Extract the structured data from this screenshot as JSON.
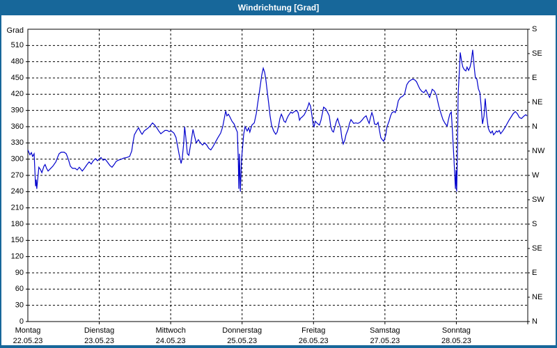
{
  "window": {
    "title": "Windrichtung [Grad]"
  },
  "colors": {
    "titlebar": "#17679a",
    "frame_border": "#17679a",
    "line": "#0000cc",
    "grid": "#000000",
    "background": "#ffffff"
  },
  "chart_data": {
    "type": "line",
    "title": "Windrichtung [Grad]",
    "ylabel": "Grad",
    "unit_label": "Grad",
    "ylim": [
      0,
      540
    ],
    "y_tick_step": 30,
    "y_left_ticks": [
      0,
      30,
      60,
      90,
      120,
      150,
      180,
      210,
      240,
      270,
      300,
      330,
      360,
      390,
      420,
      450,
      480,
      510
    ],
    "y_right_ticks": [
      {
        "deg": 0,
        "label": "N"
      },
      {
        "deg": 45,
        "label": "NE"
      },
      {
        "deg": 90,
        "label": "E"
      },
      {
        "deg": 135,
        "label": "SE"
      },
      {
        "deg": 180,
        "label": "S"
      },
      {
        "deg": 225,
        "label": "SW"
      },
      {
        "deg": 270,
        "label": "W"
      },
      {
        "deg": 315,
        "label": "NW"
      },
      {
        "deg": 360,
        "label": "N"
      },
      {
        "deg": 405,
        "label": "NE"
      },
      {
        "deg": 450,
        "label": "E"
      },
      {
        "deg": 495,
        "label": "SE"
      },
      {
        "deg": 540,
        "label": "S"
      }
    ],
    "xlim_hours": [
      0,
      168
    ],
    "x_days": [
      {
        "name": "Montag",
        "date": "22.05.23"
      },
      {
        "name": "Dienstag",
        "date": "23.05.23"
      },
      {
        "name": "Mittwoch",
        "date": "24.05.23"
      },
      {
        "name": "Donnerstag",
        "date": "25.05.23"
      },
      {
        "name": "Freitag",
        "date": "26.05.23"
      },
      {
        "name": "Samstag",
        "date": "27.05.23"
      },
      {
        "name": "Sonntag",
        "date": "28.05.23"
      }
    ],
    "grid": true,
    "legend": "none",
    "series": [
      {
        "name": "Windrichtung",
        "color": "#0000cc",
        "points": [
          [
            0,
            317
          ],
          [
            0.7,
            308
          ],
          [
            1.2,
            312
          ],
          [
            1.6,
            305
          ],
          [
            2.1,
            310
          ],
          [
            2.6,
            250
          ],
          [
            2.8,
            262
          ],
          [
            3,
            245
          ],
          [
            3.7,
            285
          ],
          [
            4.2,
            281
          ],
          [
            4.7,
            275
          ],
          [
            5.4,
            287
          ],
          [
            5.8,
            290
          ],
          [
            6.3,
            283
          ],
          [
            6.8,
            278
          ],
          [
            7.5,
            282
          ],
          [
            8.4,
            287
          ],
          [
            9.4,
            295
          ],
          [
            10.1,
            305
          ],
          [
            10.5,
            310
          ],
          [
            11.2,
            313
          ],
          [
            12.2,
            313
          ],
          [
            12.9,
            310
          ],
          [
            13.6,
            300
          ],
          [
            14.3,
            287
          ],
          [
            15,
            283
          ],
          [
            15.9,
            283
          ],
          [
            16.6,
            280
          ],
          [
            17.3,
            285
          ],
          [
            18.3,
            278
          ],
          [
            19,
            283
          ],
          [
            19.9,
            290
          ],
          [
            20.6,
            295
          ],
          [
            21.3,
            291
          ],
          [
            22,
            297
          ],
          [
            22.7,
            301
          ],
          [
            23.4,
            297
          ],
          [
            23.9,
            300
          ],
          [
            24.6,
            303
          ],
          [
            25.3,
            298
          ],
          [
            26,
            300
          ],
          [
            26.7,
            295
          ],
          [
            27.6,
            288
          ],
          [
            28.3,
            285
          ],
          [
            29,
            290
          ],
          [
            29.7,
            296
          ],
          [
            30.4,
            298
          ],
          [
            31.4,
            300
          ],
          [
            32.3,
            302
          ],
          [
            33.2,
            303
          ],
          [
            34.2,
            305
          ],
          [
            34.9,
            315
          ],
          [
            35.3,
            330
          ],
          [
            35.8,
            345
          ],
          [
            36.5,
            352
          ],
          [
            37.2,
            358
          ],
          [
            37.9,
            350
          ],
          [
            38.4,
            346
          ],
          [
            39.1,
            352
          ],
          [
            39.8,
            355
          ],
          [
            40.5,
            358
          ],
          [
            41.2,
            362
          ],
          [
            41.9,
            367
          ],
          [
            42.6,
            363
          ],
          [
            43.3,
            358
          ],
          [
            44,
            352
          ],
          [
            44.7,
            347
          ],
          [
            45.4,
            350
          ],
          [
            46.1,
            353
          ],
          [
            46.8,
            353
          ],
          [
            47.5,
            351
          ],
          [
            48.2,
            352
          ],
          [
            49.1,
            348
          ],
          [
            49.8,
            340
          ],
          [
            50.8,
            310
          ],
          [
            51.5,
            292
          ],
          [
            51.9,
            302
          ],
          [
            52.4,
            330
          ],
          [
            52.7,
            360
          ],
          [
            53.1,
            340
          ],
          [
            53.6,
            310
          ],
          [
            54.1,
            307
          ],
          [
            54.8,
            330
          ],
          [
            55.5,
            355
          ],
          [
            55.9,
            345
          ],
          [
            56.6,
            330
          ],
          [
            57.3,
            336
          ],
          [
            58,
            330
          ],
          [
            58.7,
            326
          ],
          [
            59.4,
            330
          ],
          [
            60.1,
            326
          ],
          [
            60.8,
            320
          ],
          [
            61.5,
            317
          ],
          [
            62.2,
            323
          ],
          [
            62.9,
            330
          ],
          [
            63.9,
            340
          ],
          [
            64.8,
            348
          ],
          [
            65.5,
            360
          ],
          [
            66,
            375
          ],
          [
            66.5,
            389
          ],
          [
            66.9,
            380
          ],
          [
            67.4,
            383
          ],
          [
            67.9,
            378
          ],
          [
            68.6,
            370
          ],
          [
            69.3,
            365
          ],
          [
            70,
            355
          ],
          [
            70.4,
            350
          ],
          [
            70.7,
            300
          ],
          [
            70.9,
            245
          ],
          [
            71.1,
            310
          ],
          [
            71.4,
            240
          ],
          [
            71.8,
            300
          ],
          [
            72.3,
            330
          ],
          [
            72.5,
            345
          ],
          [
            73,
            360
          ],
          [
            73.7,
            352
          ],
          [
            74.2,
            358
          ],
          [
            74.6,
            350
          ],
          [
            75.3,
            363
          ],
          [
            76.1,
            367
          ],
          [
            76.8,
            385
          ],
          [
            77.2,
            401
          ],
          [
            77.9,
            427
          ],
          [
            78.6,
            455
          ],
          [
            79.1,
            468
          ],
          [
            79.6,
            460
          ],
          [
            80,
            446
          ],
          [
            80.5,
            423
          ],
          [
            81,
            400
          ],
          [
            81.4,
            380
          ],
          [
            81.9,
            363
          ],
          [
            82.6,
            352
          ],
          [
            83.3,
            346
          ],
          [
            83.8,
            350
          ],
          [
            84.2,
            360
          ],
          [
            84.7,
            375
          ],
          [
            85.2,
            383
          ],
          [
            85.6,
            378
          ],
          [
            86.1,
            370
          ],
          [
            86.6,
            368
          ],
          [
            87,
            374
          ],
          [
            87.5,
            380
          ],
          [
            88,
            384
          ],
          [
            88.4,
            387
          ],
          [
            88.9,
            385
          ],
          [
            89.6,
            388
          ],
          [
            90.3,
            390
          ],
          [
            90.8,
            386
          ],
          [
            91.3,
            372
          ],
          [
            91.7,
            376
          ],
          [
            92.2,
            378
          ],
          [
            92.9,
            382
          ],
          [
            93.6,
            390
          ],
          [
            94.1,
            397
          ],
          [
            94.5,
            404
          ],
          [
            95,
            398
          ],
          [
            95.5,
            380
          ],
          [
            95.9,
            363
          ],
          [
            96.2,
            360
          ],
          [
            96.6,
            370
          ],
          [
            97.3,
            366
          ],
          [
            98,
            363
          ],
          [
            98.5,
            372
          ],
          [
            99,
            385
          ],
          [
            99.4,
            396
          ],
          [
            100.1,
            393
          ],
          [
            100.6,
            388
          ],
          [
            101.3,
            380
          ],
          [
            101.8,
            360
          ],
          [
            102.3,
            352
          ],
          [
            102.7,
            350
          ],
          [
            103.2,
            360
          ],
          [
            103.7,
            370
          ],
          [
            104.1,
            375
          ],
          [
            104.6,
            366
          ],
          [
            105.1,
            358
          ],
          [
            105.5,
            340
          ],
          [
            106,
            328
          ],
          [
            106.5,
            335
          ],
          [
            106.9,
            345
          ],
          [
            107.6,
            355
          ],
          [
            108.1,
            366
          ],
          [
            108.6,
            373
          ],
          [
            109,
            370
          ],
          [
            109.5,
            366
          ],
          [
            110.2,
            367
          ],
          [
            110.9,
            366
          ],
          [
            111.6,
            368
          ],
          [
            112.3,
            372
          ],
          [
            113,
            377
          ],
          [
            113.7,
            380
          ],
          [
            114.2,
            372
          ],
          [
            114.7,
            366
          ],
          [
            115.1,
            376
          ],
          [
            115.6,
            386
          ],
          [
            116.1,
            378
          ],
          [
            116.5,
            365
          ],
          [
            117.2,
            364
          ],
          [
            117.7,
            368
          ],
          [
            118.2,
            352
          ],
          [
            118.6,
            340
          ],
          [
            119.1,
            336
          ],
          [
            119.6,
            333
          ],
          [
            120.3,
            345
          ],
          [
            120.7,
            360
          ],
          [
            121.4,
            370
          ],
          [
            121.9,
            380
          ],
          [
            122.4,
            386
          ],
          [
            123.1,
            388
          ],
          [
            123.5,
            386
          ],
          [
            124,
            395
          ],
          [
            124.5,
            408
          ],
          [
            125.2,
            414
          ],
          [
            125.9,
            416
          ],
          [
            126.6,
            420
          ],
          [
            127.3,
            437
          ],
          [
            128,
            443
          ],
          [
            128.7,
            446
          ],
          [
            129.4,
            448
          ],
          [
            130.1,
            446
          ],
          [
            130.6,
            443
          ],
          [
            131,
            438
          ],
          [
            131.7,
            430
          ],
          [
            132.4,
            425
          ],
          [
            133.1,
            423
          ],
          [
            133.8,
            428
          ],
          [
            134.5,
            420
          ],
          [
            135,
            414
          ],
          [
            135.5,
            422
          ],
          [
            135.9,
            429
          ],
          [
            136.6,
            426
          ],
          [
            137.3,
            418
          ],
          [
            138.1,
            398
          ],
          [
            138.8,
            385
          ],
          [
            139.5,
            373
          ],
          [
            140.2,
            366
          ],
          [
            140.9,
            361
          ],
          [
            141.3,
            372
          ],
          [
            141.8,
            383
          ],
          [
            142.3,
            387
          ],
          [
            142.7,
            350
          ],
          [
            143.2,
            300
          ],
          [
            143.7,
            245
          ],
          [
            143.9,
            280
          ],
          [
            144.1,
            240
          ],
          [
            144.4,
            320
          ],
          [
            144.6,
            420
          ],
          [
            145.1,
            470
          ],
          [
            145.3,
            497
          ],
          [
            145.8,
            480
          ],
          [
            146.2,
            470
          ],
          [
            146.7,
            465
          ],
          [
            147.2,
            463
          ],
          [
            147.6,
            470
          ],
          [
            148.1,
            464
          ],
          [
            148.6,
            470
          ],
          [
            149,
            480
          ],
          [
            149.5,
            502
          ],
          [
            150,
            470
          ],
          [
            150.4,
            450
          ],
          [
            150.9,
            448
          ],
          [
            151.4,
            430
          ],
          [
            151.9,
            423
          ],
          [
            152.3,
            400
          ],
          [
            152.8,
            365
          ],
          [
            153.3,
            380
          ],
          [
            153.7,
            412
          ],
          [
            154.2,
            380
          ],
          [
            154.7,
            358
          ],
          [
            155.1,
            352
          ],
          [
            155.6,
            348
          ],
          [
            156.1,
            352
          ],
          [
            156.5,
            345
          ],
          [
            157,
            348
          ],
          [
            157.5,
            352
          ],
          [
            157.9,
            350
          ],
          [
            158.4,
            353
          ],
          [
            158.9,
            347
          ],
          [
            159.6,
            352
          ],
          [
            160.3,
            358
          ],
          [
            161,
            365
          ],
          [
            161.7,
            372
          ],
          [
            162.4,
            378
          ],
          [
            163.1,
            384
          ],
          [
            163.8,
            388
          ],
          [
            164.5,
            384
          ],
          [
            165.2,
            377
          ],
          [
            165.9,
            375
          ],
          [
            166.6,
            379
          ],
          [
            167.3,
            382
          ],
          [
            167.8,
            380
          ]
        ]
      }
    ]
  }
}
